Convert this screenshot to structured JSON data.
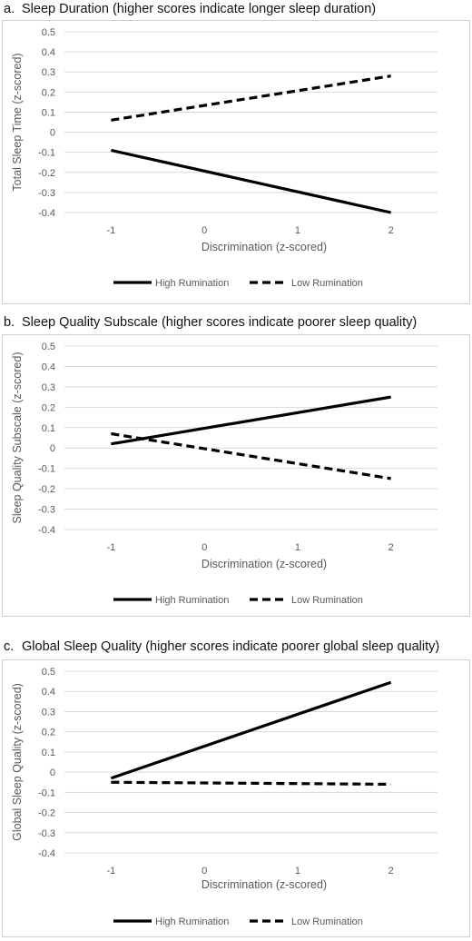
{
  "chart_data": [
    {
      "type": "line",
      "panel_letter": "a.",
      "title": "Sleep Duration (higher scores indicate longer sleep duration)",
      "xlabel": "Discrimination (z-scored)",
      "ylabel": "Total Sleep Time (z-scored)",
      "x": [
        -1,
        2
      ],
      "xticks": [
        "-1",
        "0",
        "1",
        "2"
      ],
      "yticks": [
        "0.5",
        "0.4",
        "0.3",
        "0.2",
        "0.1",
        "0",
        "-0.1",
        "-0.2",
        "-0.3",
        "-0.4"
      ],
      "ylim": [
        -0.4,
        0.5
      ],
      "grid": true,
      "legend_position": "bottom",
      "series": [
        {
          "name": "High Rumination",
          "style": "solid",
          "color": "#000000",
          "values": [
            -0.09,
            -0.4
          ]
        },
        {
          "name": "Low Rumination",
          "style": "dashed",
          "color": "#000000",
          "values": [
            0.06,
            0.28
          ]
        }
      ]
    },
    {
      "type": "line",
      "panel_letter": "b.",
      "title": "Sleep Quality Subscale (higher scores indicate poorer sleep quality)",
      "xlabel": "Discrimination (z-scored)",
      "ylabel": "Sleep Quality Subscale (z-scored)",
      "x": [
        -1,
        2
      ],
      "xticks": [
        "-1",
        "0",
        "1",
        "2"
      ],
      "yticks": [
        "0.5",
        "0.4",
        "0.3",
        "0.2",
        "0.1",
        "0",
        "-0.1",
        "-0.2",
        "-0.3",
        "-0.4"
      ],
      "ylim": [
        -0.4,
        0.5
      ],
      "grid": true,
      "legend_position": "bottom",
      "series": [
        {
          "name": "High Rumination",
          "style": "solid",
          "color": "#000000",
          "values": [
            0.02,
            0.25
          ]
        },
        {
          "name": "Low Rumination",
          "style": "dashed",
          "color": "#000000",
          "values": [
            0.07,
            -0.15
          ]
        }
      ]
    },
    {
      "type": "line",
      "panel_letter": "c.",
      "title": "Global Sleep Quality (higher scores indicate poorer global sleep quality)",
      "xlabel": "Discrimination (z-scored)",
      "ylabel": "Global  Sleep Quality (z-scored)",
      "x": [
        -1,
        2
      ],
      "xticks": [
        "-1",
        "0",
        "1",
        "2"
      ],
      "yticks": [
        "0.5",
        "0.4",
        "0.3",
        "0.2",
        "0.1",
        "0",
        "-0.1",
        "-0.2",
        "-0.3",
        "-0.4"
      ],
      "ylim": [
        -0.4,
        0.5
      ],
      "grid": true,
      "legend_position": "bottom",
      "series": [
        {
          "name": "High Rumination",
          "style": "solid",
          "color": "#000000",
          "values": [
            -0.03,
            0.445
          ]
        },
        {
          "name": "Low Rumination",
          "style": "dashed",
          "color": "#000000",
          "values": [
            -0.05,
            -0.06
          ]
        }
      ]
    }
  ],
  "colors": {
    "grid": "#d9d9d9",
    "tick_text": "#595959",
    "series": "#000000"
  }
}
